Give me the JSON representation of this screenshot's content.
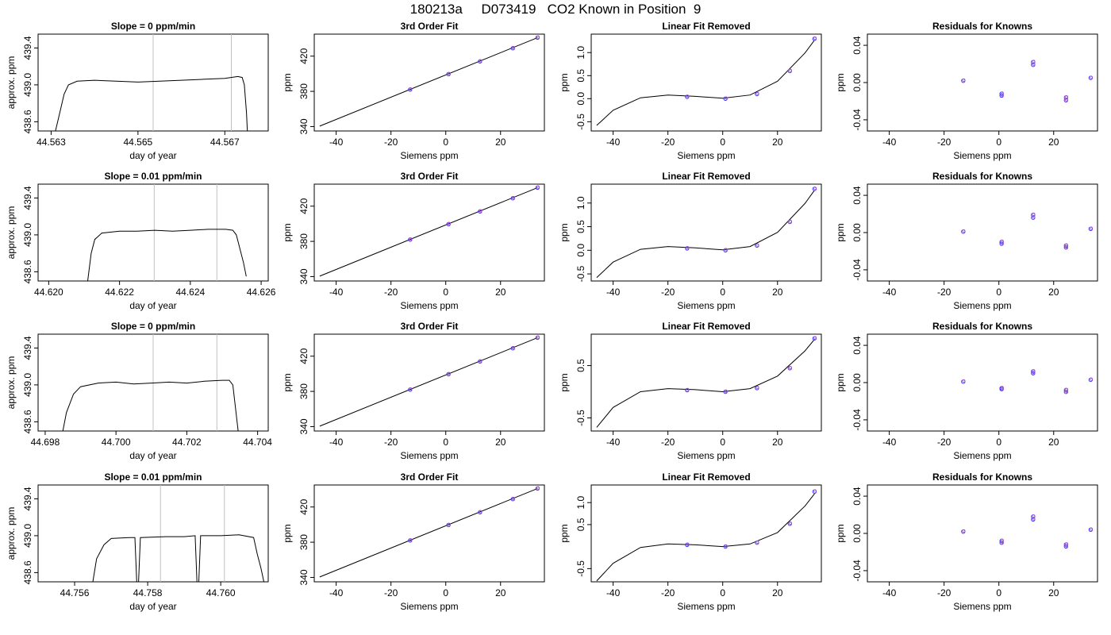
{
  "title": "180213a     D073419   CO2 Known in Position  9",
  "chart_data": [
    {
      "type": "line",
      "title": "Slope =  0  ppm/min",
      "xlabel": "day of year",
      "ylabel": "approx. ppm",
      "xlim": [
        44.5627,
        44.568
      ],
      "ylim": [
        438.5,
        439.55
      ],
      "xticks": [
        "44.563",
        "44.565",
        "44.567"
      ],
      "yticks": [
        "438.6",
        "439.0",
        "439.4"
      ],
      "vlines": [
        44.56535,
        44.56715
      ],
      "series": [
        {
          "x": [
            44.5631,
            44.5632,
            44.5633,
            44.5634,
            44.5636,
            44.564,
            44.5645,
            44.565,
            44.5655,
            44.566,
            44.5665,
            44.567,
            44.5673,
            44.5674,
            44.56745,
            44.5675,
            44.56752
          ],
          "y": [
            438.5,
            438.7,
            438.9,
            439.0,
            439.04,
            439.05,
            439.04,
            439.03,
            439.04,
            439.05,
            439.06,
            439.07,
            439.09,
            439.08,
            439.0,
            438.7,
            438.5
          ]
        }
      ]
    },
    {
      "type": "line",
      "title": "3rd Order Fit",
      "xlabel": "Siemens ppm",
      "ylabel": "ppm",
      "xlim": [
        -48,
        36
      ],
      "ylim": [
        335,
        445
      ],
      "xticks": [
        "-40",
        "-20",
        "0",
        "20"
      ],
      "yticks": [
        "340",
        "380",
        "420"
      ],
      "line": {
        "x": [
          -46,
          33.5
        ],
        "y": [
          340.5,
          441
        ]
      },
      "points": {
        "x": [
          -13,
          1,
          12.5,
          24.5,
          33.5
        ],
        "y": [
          382,
          399.5,
          414,
          429,
          441
        ]
      }
    },
    {
      "type": "scatter",
      "title": "Linear Fit Removed",
      "xlabel": "Siemens ppm",
      "ylabel": "ppm",
      "xlim": [
        -48,
        36
      ],
      "ylim": [
        -0.7,
        1.4
      ],
      "xticks": [
        "-40",
        "-20",
        "0",
        "20"
      ],
      "yticks": [
        "-0.5",
        "0.0",
        "0.5",
        "1.0"
      ],
      "curve": {
        "x": [
          -46,
          -40,
          -30,
          -20,
          -10,
          0,
          10,
          20,
          30,
          33.5
        ],
        "y": [
          -0.58,
          -0.25,
          0.02,
          0.08,
          0.05,
          0.01,
          0.08,
          0.38,
          0.99,
          1.27
        ]
      },
      "points": {
        "x": [
          -13,
          1,
          12.5,
          24.5,
          33.5
        ],
        "y": [
          0.04,
          0.0,
          0.1,
          0.6,
          1.3
        ]
      }
    },
    {
      "type": "scatter",
      "title": "Residuals for Knowns",
      "xlabel": "Siemens ppm",
      "ylabel": "ppm",
      "xlim": [
        -48,
        36
      ],
      "ylim": [
        -0.052,
        0.052
      ],
      "xticks": [
        "-40",
        "-20",
        "0",
        "20"
      ],
      "yticks": [
        "-0.04",
        "0.00",
        "0.04"
      ],
      "points": {
        "x": [
          -13,
          1,
          1,
          12.5,
          12.5,
          24.5,
          24.5,
          33.5
        ],
        "y": [
          0.002,
          -0.012,
          -0.014,
          0.022,
          0.019,
          -0.016,
          -0.019,
          0.005
        ]
      }
    },
    {
      "type": "line",
      "title": "Slope =  0.01  ppm/min",
      "xlabel": "day of year",
      "ylabel": "approx. ppm",
      "xlim": [
        44.6197,
        44.6262
      ],
      "ylim": [
        438.5,
        439.55
      ],
      "xticks": [
        "44.620",
        "44.622",
        "44.624",
        "44.626"
      ],
      "yticks": [
        "438.6",
        "439.0",
        "439.4"
      ],
      "vlines": [
        44.62298,
        44.62475
      ],
      "series": [
        {
          "x": [
            44.6211,
            44.6212,
            44.6213,
            44.6215,
            44.622,
            44.6225,
            44.623,
            44.6235,
            44.624,
            44.6245,
            44.625,
            44.6252,
            44.6253,
            44.6255,
            44.62558
          ],
          "y": [
            438.5,
            438.8,
            438.95,
            439.02,
            439.04,
            439.04,
            439.05,
            439.04,
            439.05,
            439.06,
            439.06,
            439.05,
            439.0,
            438.7,
            438.55
          ]
        }
      ]
    },
    {
      "type": "line",
      "title": "3rd Order Fit",
      "xlabel": "Siemens ppm",
      "ylabel": "ppm",
      "xlim": [
        -48,
        36
      ],
      "ylim": [
        335,
        445
      ],
      "xticks": [
        "-40",
        "-20",
        "0",
        "20"
      ],
      "yticks": [
        "340",
        "380",
        "420"
      ],
      "line": {
        "x": [
          -46,
          33.5
        ],
        "y": [
          340.5,
          441
        ]
      },
      "points": {
        "x": [
          -13,
          1,
          12.5,
          24.5,
          33.5
        ],
        "y": [
          382,
          399.5,
          414,
          429,
          441
        ]
      }
    },
    {
      "type": "scatter",
      "title": "Linear Fit Removed",
      "xlabel": "Siemens ppm",
      "ylabel": "ppm",
      "xlim": [
        -48,
        36
      ],
      "ylim": [
        -0.65,
        1.4
      ],
      "xticks": [
        "-40",
        "-20",
        "0",
        "20"
      ],
      "yticks": [
        "-0.5",
        "0.0",
        "0.5",
        "1.0"
      ],
      "curve": {
        "x": [
          -46,
          -40,
          -30,
          -20,
          -10,
          0,
          10,
          20,
          30,
          33.5
        ],
        "y": [
          -0.58,
          -0.25,
          0.02,
          0.08,
          0.05,
          0.01,
          0.08,
          0.38,
          0.99,
          1.27
        ]
      },
      "points": {
        "x": [
          -13,
          1,
          12.5,
          24.5,
          33.5
        ],
        "y": [
          0.04,
          0.0,
          0.1,
          0.6,
          1.3
        ]
      }
    },
    {
      "type": "scatter",
      "title": "Residuals for Knowns",
      "xlabel": "Siemens ppm",
      "ylabel": "ppm",
      "xlim": [
        -48,
        36
      ],
      "ylim": [
        -0.052,
        0.052
      ],
      "xticks": [
        "-40",
        "-20",
        "0",
        "20"
      ],
      "yticks": [
        "-0.04",
        "0.00",
        "0.04"
      ],
      "points": {
        "x": [
          -13,
          1,
          1,
          12.5,
          12.5,
          24.5,
          24.5,
          33.5
        ],
        "y": [
          0.001,
          -0.01,
          -0.012,
          0.019,
          0.016,
          -0.014,
          -0.016,
          0.004
        ]
      }
    },
    {
      "type": "line",
      "title": "Slope =  0  ppm/min",
      "xlabel": "day of year",
      "ylabel": "approx. ppm",
      "xlim": [
        44.6978,
        44.7043
      ],
      "ylim": [
        438.5,
        439.55
      ],
      "xticks": [
        "44.698",
        "44.700",
        "44.702",
        "44.704"
      ],
      "yticks": [
        "438.6",
        "439.0",
        "439.4"
      ],
      "vlines": [
        44.70105,
        44.70285
      ],
      "series": [
        {
          "x": [
            44.6985,
            44.6986,
            44.6988,
            44.699,
            44.6995,
            44.7,
            44.7005,
            44.701,
            44.7015,
            44.702,
            44.7025,
            44.703,
            44.7032,
            44.7033,
            44.70345
          ],
          "y": [
            438.5,
            438.7,
            438.9,
            438.98,
            439.02,
            439.03,
            439.01,
            439.02,
            439.03,
            439.02,
            439.04,
            439.05,
            439.05,
            439.0,
            438.5
          ]
        }
      ]
    },
    {
      "type": "line",
      "title": "3rd Order Fit",
      "xlabel": "Siemens ppm",
      "ylabel": "ppm",
      "xlim": [
        -48,
        36
      ],
      "ylim": [
        335,
        445
      ],
      "xticks": [
        "-40",
        "-20",
        "0",
        "20"
      ],
      "yticks": [
        "340",
        "380",
        "420"
      ],
      "line": {
        "x": [
          -46,
          33.5
        ],
        "y": [
          340.5,
          441
        ]
      },
      "points": {
        "x": [
          -13,
          1,
          12.5,
          24.5,
          33.5
        ],
        "y": [
          382,
          399.5,
          414,
          429,
          441
        ]
      }
    },
    {
      "type": "scatter",
      "title": "Linear Fit Removed",
      "xlabel": "Siemens ppm",
      "ylabel": "ppm",
      "xlim": [
        -48,
        36
      ],
      "ylim": [
        -0.75,
        1.1
      ],
      "xticks": [
        "-40",
        "-20",
        "0",
        "20"
      ],
      "yticks": [
        "-0.5",
        "0.5"
      ],
      "curve": {
        "x": [
          -46,
          -40,
          -30,
          -20,
          -10,
          0,
          10,
          20,
          30,
          33.5
        ],
        "y": [
          -0.68,
          -0.3,
          0.0,
          0.06,
          0.04,
          0.0,
          0.06,
          0.3,
          0.78,
          1.0
        ]
      },
      "points": {
        "x": [
          -13,
          1,
          12.5,
          24.5,
          33.5
        ],
        "y": [
          0.03,
          0.0,
          0.07,
          0.45,
          1.02
        ]
      }
    },
    {
      "type": "scatter",
      "title": "Residuals for Knowns",
      "xlabel": "Siemens ppm",
      "ylabel": "ppm",
      "xlim": [
        -48,
        36
      ],
      "ylim": [
        -0.052,
        0.052
      ],
      "xticks": [
        "-40",
        "-20",
        "0",
        "20"
      ],
      "yticks": [
        "-0.04",
        "0.00",
        "0.04"
      ],
      "points": {
        "x": [
          -13,
          1,
          1,
          12.5,
          12.5,
          24.5,
          24.5,
          33.5
        ],
        "y": [
          0.001,
          -0.006,
          -0.007,
          0.012,
          0.01,
          -0.008,
          -0.01,
          0.003
        ]
      }
    },
    {
      "type": "line",
      "title": "Slope =  0.01  ppm/min",
      "xlabel": "day of year",
      "ylabel": "approx. ppm",
      "xlim": [
        44.755,
        44.7613
      ],
      "ylim": [
        438.5,
        439.55
      ],
      "xticks": [
        "44.756",
        "44.758",
        "44.760"
      ],
      "yticks": [
        "438.6",
        "439.0",
        "439.4"
      ],
      "vlines": [
        44.75835,
        44.7601
      ],
      "series": [
        {
          "x": [
            44.7565,
            44.7566,
            44.7568,
            44.757,
            44.7575,
            44.75765,
            44.7577,
            44.75775,
            44.7578,
            44.7585,
            44.759,
            44.7593,
            44.75935,
            44.7594,
            44.75945,
            44.7595,
            44.76,
            44.7605,
            44.7609,
            44.761,
            44.7611,
            44.76118
          ],
          "y": [
            438.5,
            438.75,
            438.9,
            438.97,
            438.98,
            438.98,
            438.5,
            438.5,
            438.98,
            438.99,
            438.99,
            439.0,
            438.5,
            438.5,
            439.0,
            439.0,
            439.0,
            439.01,
            438.98,
            438.8,
            438.65,
            438.5
          ]
        }
      ]
    },
    {
      "type": "line",
      "title": "3rd Order Fit",
      "xlabel": "Siemens ppm",
      "ylabel": "ppm",
      "xlim": [
        -48,
        36
      ],
      "ylim": [
        335,
        445
      ],
      "xticks": [
        "-40",
        "-20",
        "0",
        "20"
      ],
      "yticks": [
        "340",
        "380",
        "420"
      ],
      "line": {
        "x": [
          -46,
          33.5
        ],
        "y": [
          340.5,
          441
        ]
      },
      "points": {
        "x": [
          -13,
          1,
          12.5,
          24.5,
          33.5
        ],
        "y": [
          382,
          399.5,
          414,
          429,
          441
        ]
      }
    },
    {
      "type": "scatter",
      "title": "Linear Fit Removed",
      "xlabel": "Siemens ppm",
      "ylabel": "ppm",
      "xlim": [
        -48,
        36
      ],
      "ylim": [
        -0.8,
        1.4
      ],
      "xticks": [
        "-40",
        "-20",
        "0",
        "20"
      ],
      "yticks": [
        "-0.5",
        "0.5",
        "1.0"
      ],
      "curve": {
        "x": [
          -46,
          -40,
          -30,
          -20,
          -10,
          0,
          10,
          20,
          30,
          33.5
        ],
        "y": [
          -0.78,
          -0.38,
          -0.02,
          0.06,
          0.04,
          0.0,
          0.06,
          0.32,
          0.92,
          1.2
        ]
      },
      "points": {
        "x": [
          -13,
          1,
          12.5,
          24.5,
          33.5
        ],
        "y": [
          0.04,
          0.0,
          0.09,
          0.52,
          1.25
        ]
      }
    },
    {
      "type": "scatter",
      "title": "Residuals for Knowns",
      "xlabel": "Siemens ppm",
      "ylabel": "ppm",
      "xlim": [
        -48,
        36
      ],
      "ylim": [
        -0.052,
        0.052
      ],
      "xticks": [
        "-40",
        "-20",
        "0",
        "20"
      ],
      "yticks": [
        "-0.04",
        "0.00",
        "0.04"
      ],
      "points": {
        "x": [
          -13,
          1,
          1,
          12.5,
          12.5,
          24.5,
          24.5,
          33.5
        ],
        "y": [
          0.002,
          -0.008,
          -0.01,
          0.018,
          0.015,
          -0.012,
          -0.014,
          0.004
        ]
      }
    }
  ]
}
